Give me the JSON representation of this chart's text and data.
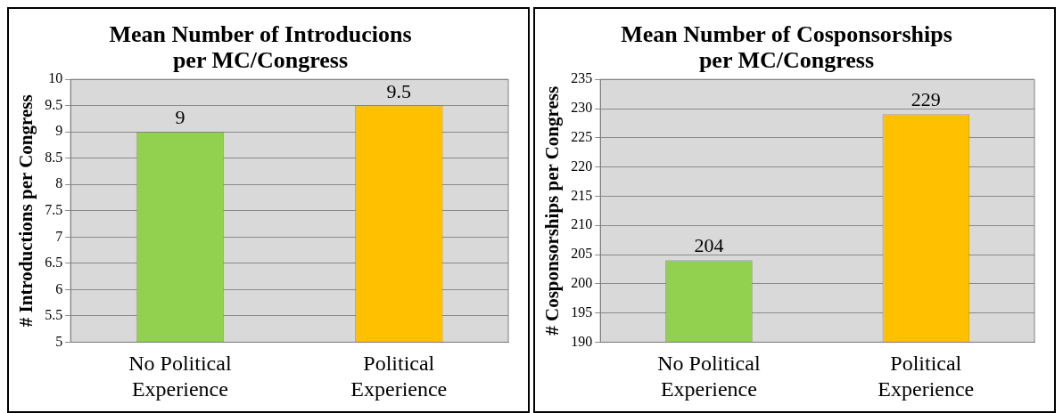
{
  "chart_data": [
    {
      "type": "bar",
      "title": "Mean Number of Introducions per MC/Congress",
      "ylabel": "# Introductions per Congress",
      "categories": [
        "No Political Experience",
        "Political Experience"
      ],
      "values": [
        9,
        9.5
      ],
      "colors": [
        "#92d050",
        "#ffc000"
      ],
      "ylim": [
        5,
        10
      ],
      "yticks": [
        5,
        5.5,
        6,
        6.5,
        7,
        7.5,
        8,
        8.5,
        9,
        9.5,
        10
      ],
      "grid": "y",
      "legend": false,
      "data_labels": true
    },
    {
      "type": "bar",
      "title": "Mean Number of Cosponsorships per MC/Congress",
      "ylabel": "# Cosponsorships per Congress",
      "categories": [
        "No Political Experience",
        "Political Experience"
      ],
      "values": [
        204,
        229
      ],
      "colors": [
        "#92d050",
        "#ffc000"
      ],
      "ylim": [
        190,
        235
      ],
      "yticks": [
        190,
        195,
        200,
        205,
        210,
        215,
        220,
        225,
        230,
        235
      ],
      "grid": "y",
      "legend": false,
      "data_labels": true
    }
  ]
}
